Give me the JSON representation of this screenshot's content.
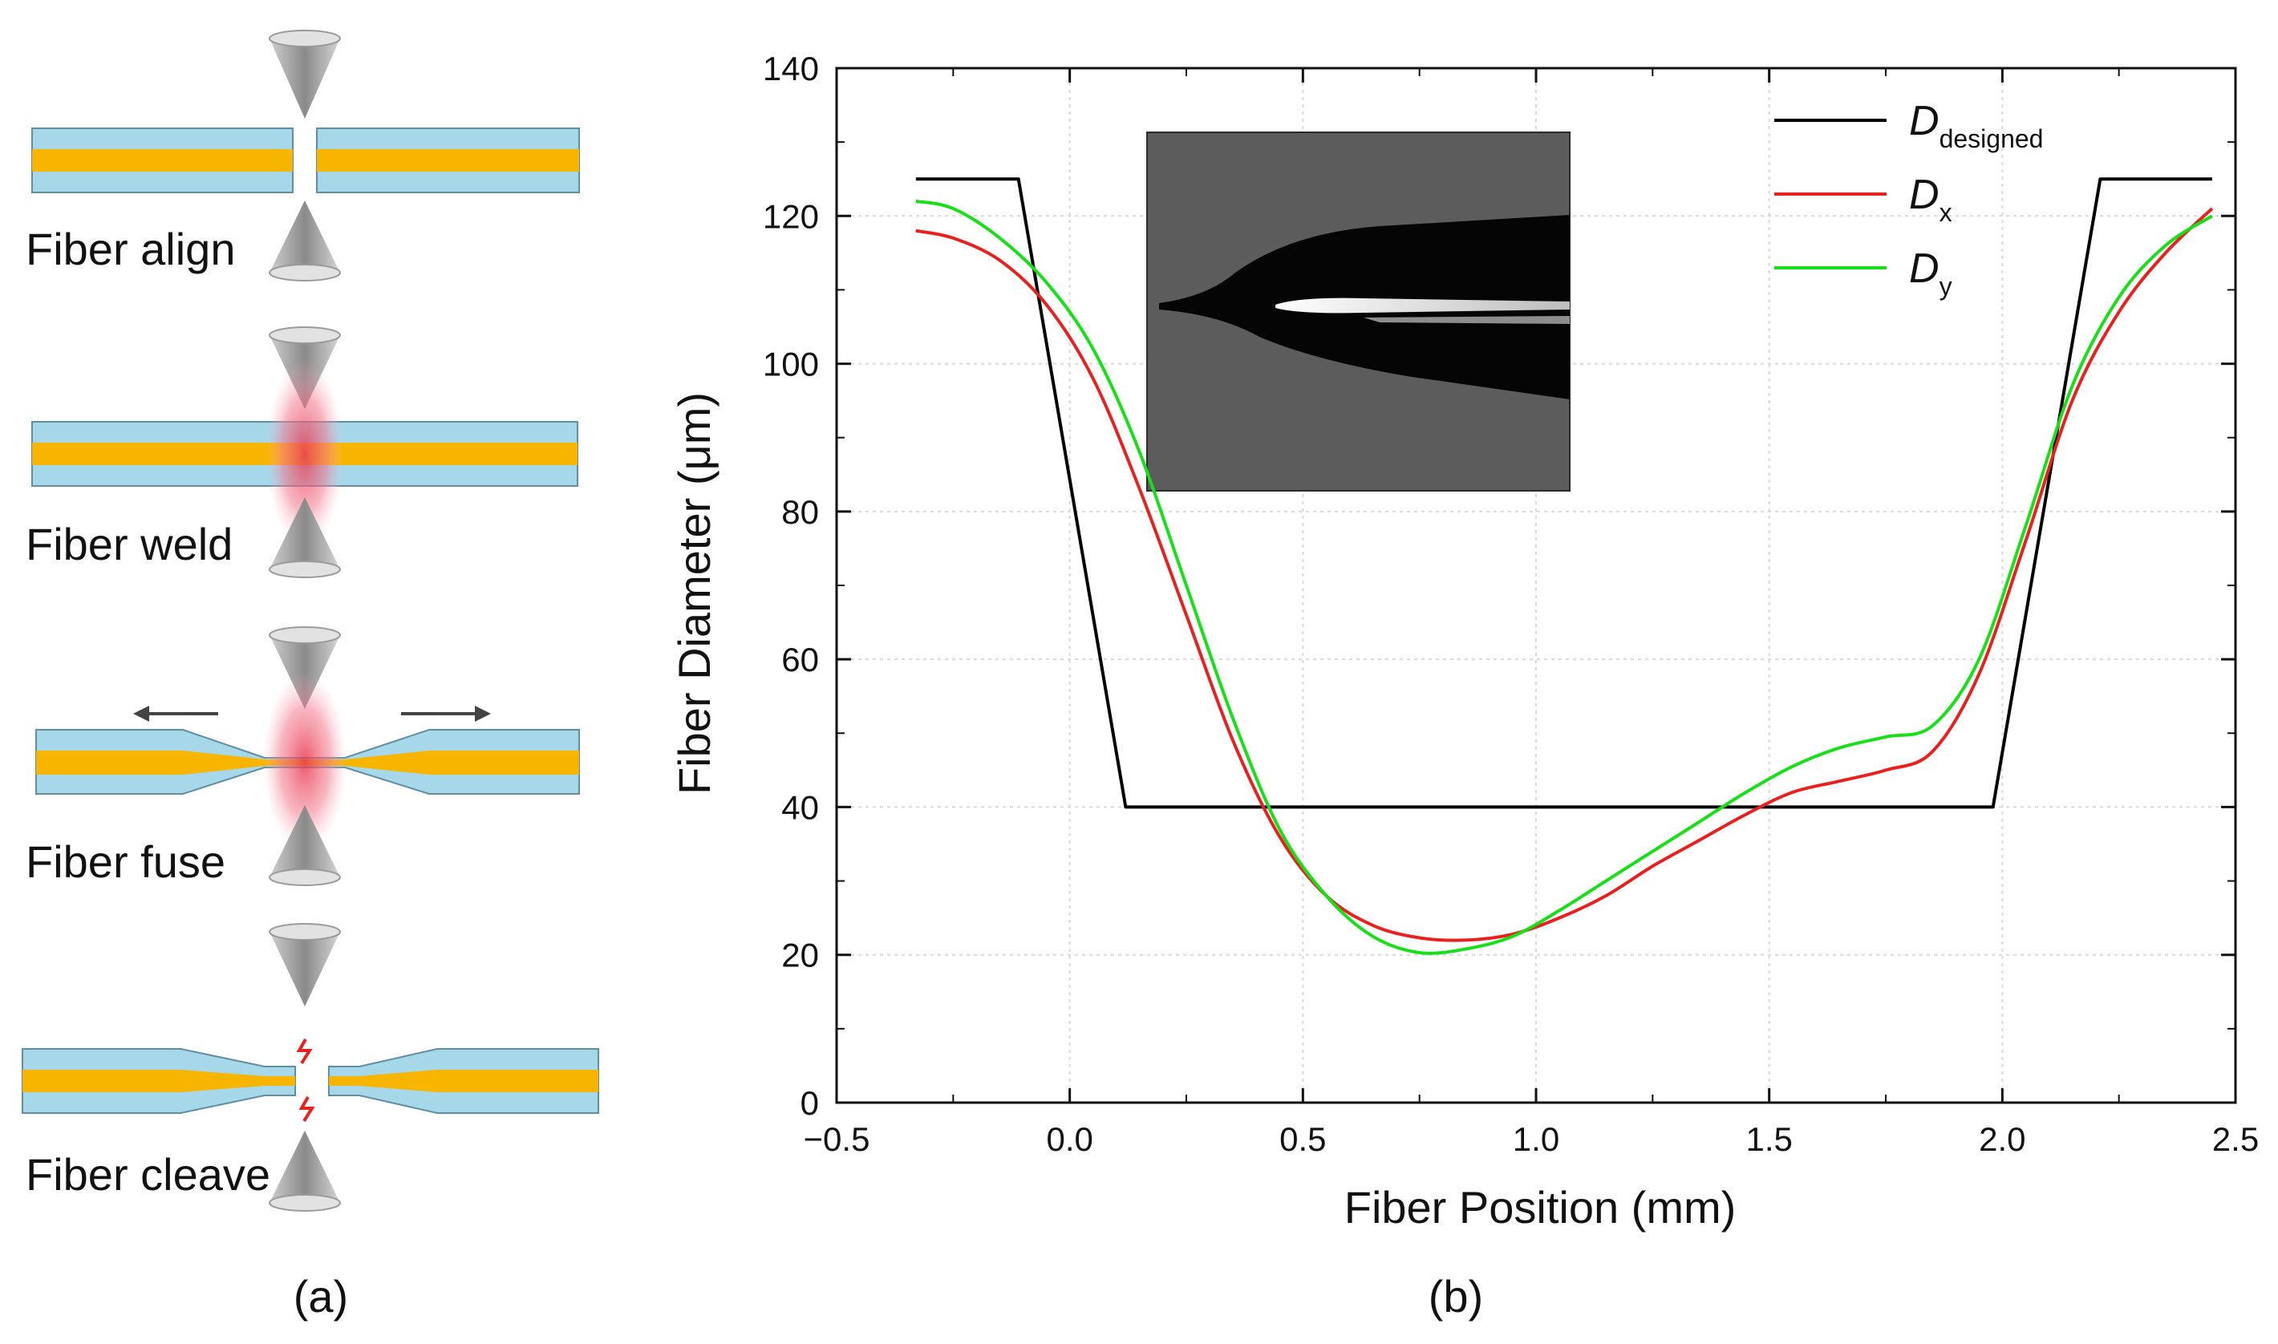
{
  "panel_a": {
    "steps": [
      {
        "label": "Fiber align"
      },
      {
        "label": "Fiber weld"
      },
      {
        "label": "Fiber fuse"
      },
      {
        "label": "Fiber cleave"
      }
    ],
    "panel_label": "(a)",
    "colors": {
      "cladding": "#a6d8ea",
      "core": "#f7b500",
      "heat": "#f06a82",
      "spark": "#e8201e",
      "electrode": "#9a9a9a"
    }
  },
  "panel_b": {
    "panel_label": "(b)"
  },
  "chart_data": {
    "type": "line",
    "xlabel": "Fiber Position (mm)",
    "ylabel": "Fiber Diameter (μm)",
    "xlim": [
      -0.5,
      2.5
    ],
    "ylim": [
      0,
      140
    ],
    "x_ticks": [
      -0.5,
      0.0,
      0.5,
      1.0,
      1.5,
      2.0,
      2.5
    ],
    "x_tick_labels": [
      "−0.5",
      "0.0",
      "0.5",
      "1.0",
      "1.5",
      "2.0",
      "2.5"
    ],
    "y_ticks": [
      0,
      20,
      40,
      60,
      80,
      100,
      120,
      140
    ],
    "y_tick_labels": [
      "0",
      "20",
      "40",
      "60",
      "80",
      "100",
      "120",
      "140"
    ],
    "grid": true,
    "legend_position": "top-right",
    "inset": "micrograph of tapered fiber",
    "series": [
      {
        "name": "D",
        "sub": "designed",
        "color": "#000000",
        "x": [
          -0.33,
          -0.11,
          0.12,
          1.98,
          2.21,
          2.45
        ],
        "y": [
          125,
          125,
          40,
          40,
          125,
          125
        ]
      },
      {
        "name": "D",
        "sub": "x",
        "color": "#e8201e",
        "x": [
          -0.33,
          -0.25,
          -0.15,
          -0.05,
          0.05,
          0.15,
          0.25,
          0.35,
          0.45,
          0.55,
          0.65,
          0.75,
          0.85,
          0.95,
          1.05,
          1.15,
          1.25,
          1.35,
          1.45,
          1.55,
          1.65,
          1.75,
          1.85,
          1.95,
          2.05,
          2.15,
          2.25,
          2.35,
          2.45
        ],
        "y": [
          118,
          117,
          114,
          108,
          98,
          83,
          66,
          49,
          36,
          28,
          24,
          22.3,
          22,
          22.8,
          25,
          28,
          32,
          35.5,
          39,
          42,
          43.5,
          45,
          47.5,
          58,
          76,
          95,
          107,
          115,
          121
        ]
      },
      {
        "name": "D",
        "sub": "y",
        "color": "#18e018",
        "x": [
          -0.33,
          -0.25,
          -0.15,
          -0.05,
          0.05,
          0.15,
          0.25,
          0.35,
          0.45,
          0.55,
          0.65,
          0.75,
          0.85,
          0.95,
          1.05,
          1.15,
          1.25,
          1.35,
          1.45,
          1.55,
          1.65,
          1.75,
          1.85,
          1.95,
          2.05,
          2.15,
          2.25,
          2.35,
          2.45
        ],
        "y": [
          122,
          121,
          117,
          111,
          102,
          88,
          70,
          52,
          37,
          28,
          22.5,
          20.3,
          20.8,
          22.5,
          26,
          30,
          34,
          38,
          42,
          45.5,
          48,
          49.5,
          51,
          60,
          78,
          97,
          109,
          116,
          120
        ]
      }
    ]
  }
}
